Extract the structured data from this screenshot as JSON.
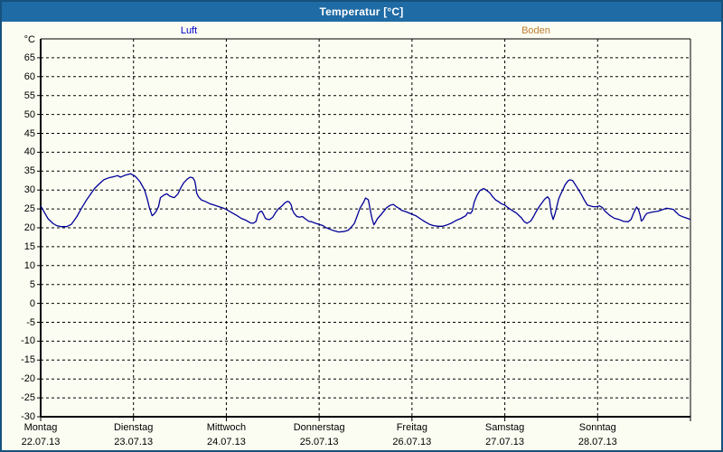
{
  "window": {
    "title": "Temperatur [°C]",
    "titlebar_color": "#1F6BA5",
    "border_color": "#16527C",
    "background_color": "#FCFDF2"
  },
  "legend": {
    "items": [
      {
        "label": "Luft",
        "color": "#0000CC"
      },
      {
        "label": "Boden",
        "color": "#BE7D32"
      }
    ],
    "position": "top"
  },
  "chart_data": {
    "type": "line",
    "title": "Temperatur [°C]",
    "y_unit_label": "°C",
    "ylim": [
      -30,
      70
    ],
    "y_ticks": [
      65,
      60,
      55,
      50,
      45,
      40,
      35,
      30,
      25,
      20,
      15,
      10,
      5,
      0,
      -5,
      -10,
      -15,
      -20,
      -25,
      -30
    ],
    "xlim_days": [
      0,
      7
    ],
    "grid": "dashed-black",
    "x_days": [
      {
        "weekday": "Montag",
        "date": "22.07.13"
      },
      {
        "weekday": "Dienstag",
        "date": "23.07.13"
      },
      {
        "weekday": "Mittwoch",
        "date": "24.07.13"
      },
      {
        "weekday": "Donnerstag",
        "date": "25.07.13"
      },
      {
        "weekday": "Freitag",
        "date": "26.07.13"
      },
      {
        "weekday": "Samstag",
        "date": "27.07.13"
      },
      {
        "weekday": "Sonntag",
        "date": "28.07.13"
      }
    ],
    "series": [
      {
        "name": "Luft",
        "color": "#000099",
        "points": [
          [
            0.0,
            25.8
          ],
          [
            0.03,
            24.5
          ],
          [
            0.08,
            22.4
          ],
          [
            0.13,
            21.2
          ],
          [
            0.17,
            20.6
          ],
          [
            0.22,
            20.3
          ],
          [
            0.28,
            20.3
          ],
          [
            0.33,
            20.9
          ],
          [
            0.39,
            23.0
          ],
          [
            0.44,
            25.2
          ],
          [
            0.49,
            27.2
          ],
          [
            0.54,
            29.0
          ],
          [
            0.58,
            30.4
          ],
          [
            0.63,
            31.6
          ],
          [
            0.68,
            32.7
          ],
          [
            0.73,
            33.2
          ],
          [
            0.78,
            33.5
          ],
          [
            0.83,
            33.8
          ],
          [
            0.86,
            33.4
          ],
          [
            0.89,
            33.7
          ],
          [
            0.92,
            34.0
          ],
          [
            0.97,
            34.3
          ],
          [
            1.02,
            33.6
          ],
          [
            1.07,
            32.2
          ],
          [
            1.12,
            30.0
          ],
          [
            1.15,
            27.5
          ],
          [
            1.17,
            25.4
          ],
          [
            1.2,
            23.2
          ],
          [
            1.22,
            23.6
          ],
          [
            1.24,
            24.2
          ],
          [
            1.27,
            25.6
          ],
          [
            1.29,
            28.0
          ],
          [
            1.33,
            28.7
          ],
          [
            1.36,
            29.0
          ],
          [
            1.39,
            28.4
          ],
          [
            1.42,
            28.1
          ],
          [
            1.44,
            28.0
          ],
          [
            1.48,
            29.0
          ],
          [
            1.51,
            30.6
          ],
          [
            1.54,
            31.9
          ],
          [
            1.58,
            32.9
          ],
          [
            1.61,
            33.4
          ],
          [
            1.64,
            33.2
          ],
          [
            1.66,
            32.4
          ],
          [
            1.67,
            31.2
          ],
          [
            1.68,
            29.2
          ],
          [
            1.7,
            28.2
          ],
          [
            1.73,
            27.4
          ],
          [
            1.77,
            27.0
          ],
          [
            1.82,
            26.4
          ],
          [
            1.87,
            26.0
          ],
          [
            1.92,
            25.6
          ],
          [
            1.97,
            25.2
          ],
          [
            2.02,
            24.6
          ],
          [
            2.06,
            24.0
          ],
          [
            2.11,
            23.3
          ],
          [
            2.16,
            22.5
          ],
          [
            2.21,
            22.0
          ],
          [
            2.26,
            21.3
          ],
          [
            2.29,
            21.2
          ],
          [
            2.32,
            21.7
          ],
          [
            2.34,
            23.6
          ],
          [
            2.36,
            24.2
          ],
          [
            2.38,
            24.4
          ],
          [
            2.4,
            23.6
          ],
          [
            2.42,
            22.5
          ],
          [
            2.45,
            22.2
          ],
          [
            2.47,
            22.2
          ],
          [
            2.5,
            22.8
          ],
          [
            2.53,
            24.0
          ],
          [
            2.56,
            25.0
          ],
          [
            2.6,
            25.8
          ],
          [
            2.63,
            26.6
          ],
          [
            2.66,
            27.0
          ],
          [
            2.68,
            26.8
          ],
          [
            2.7,
            26.0
          ],
          [
            2.71,
            24.8
          ],
          [
            2.73,
            23.8
          ],
          [
            2.76,
            23.0
          ],
          [
            2.79,
            22.8
          ],
          [
            2.82,
            23.0
          ],
          [
            2.85,
            22.4
          ],
          [
            2.89,
            21.7
          ],
          [
            2.92,
            21.6
          ],
          [
            2.95,
            21.3
          ],
          [
            3.0,
            20.9
          ],
          [
            3.04,
            20.6
          ],
          [
            3.07,
            20.1
          ],
          [
            3.12,
            19.6
          ],
          [
            3.16,
            19.2
          ],
          [
            3.21,
            18.9
          ],
          [
            3.26,
            19.0
          ],
          [
            3.31,
            19.3
          ],
          [
            3.34,
            20.0
          ],
          [
            3.38,
            21.2
          ],
          [
            3.41,
            23.2
          ],
          [
            3.44,
            25.2
          ],
          [
            3.48,
            26.8
          ],
          [
            3.5,
            27.9
          ],
          [
            3.53,
            27.4
          ],
          [
            3.55,
            24.8
          ],
          [
            3.57,
            22.4
          ],
          [
            3.59,
            20.8
          ],
          [
            3.6,
            21.2
          ],
          [
            3.63,
            22.5
          ],
          [
            3.67,
            23.6
          ],
          [
            3.7,
            24.5
          ],
          [
            3.73,
            25.4
          ],
          [
            3.77,
            26.0
          ],
          [
            3.8,
            26.2
          ],
          [
            3.83,
            25.6
          ],
          [
            3.87,
            25.0
          ],
          [
            3.89,
            24.6
          ],
          [
            3.94,
            24.2
          ],
          [
            4.0,
            23.6
          ],
          [
            4.04,
            23.2
          ],
          [
            4.09,
            22.4
          ],
          [
            4.14,
            21.6
          ],
          [
            4.19,
            20.9
          ],
          [
            4.23,
            20.6
          ],
          [
            4.28,
            20.4
          ],
          [
            4.33,
            20.4
          ],
          [
            4.38,
            20.8
          ],
          [
            4.43,
            21.3
          ],
          [
            4.48,
            22.0
          ],
          [
            4.53,
            22.5
          ],
          [
            4.58,
            23.2
          ],
          [
            4.6,
            24.0
          ],
          [
            4.63,
            23.8
          ],
          [
            4.65,
            24.5
          ],
          [
            4.67,
            26.8
          ],
          [
            4.7,
            28.6
          ],
          [
            4.73,
            29.8
          ],
          [
            4.77,
            30.4
          ],
          [
            4.8,
            30.0
          ],
          [
            4.84,
            29.2
          ],
          [
            4.87,
            28.2
          ],
          [
            4.9,
            27.4
          ],
          [
            4.94,
            26.8
          ],
          [
            4.96,
            26.4
          ],
          [
            5.0,
            26.0
          ],
          [
            5.03,
            25.4
          ],
          [
            5.08,
            24.6
          ],
          [
            5.13,
            23.8
          ],
          [
            5.18,
            22.6
          ],
          [
            5.21,
            21.6
          ],
          [
            5.24,
            21.2
          ],
          [
            5.28,
            21.8
          ],
          [
            5.31,
            23.0
          ],
          [
            5.34,
            24.4
          ],
          [
            5.37,
            25.6
          ],
          [
            5.4,
            26.6
          ],
          [
            5.43,
            27.6
          ],
          [
            5.46,
            28.2
          ],
          [
            5.48,
            27.6
          ],
          [
            5.5,
            24.0
          ],
          [
            5.52,
            22.2
          ],
          [
            5.54,
            23.6
          ],
          [
            5.56,
            25.6
          ],
          [
            5.58,
            27.6
          ],
          [
            5.6,
            28.8
          ],
          [
            5.62,
            29.8
          ],
          [
            5.65,
            31.4
          ],
          [
            5.68,
            32.4
          ],
          [
            5.7,
            32.7
          ],
          [
            5.73,
            32.5
          ],
          [
            5.75,
            31.8
          ],
          [
            5.78,
            30.6
          ],
          [
            5.81,
            29.4
          ],
          [
            5.83,
            28.6
          ],
          [
            5.86,
            27.2
          ],
          [
            5.89,
            26.0
          ],
          [
            5.92,
            25.8
          ],
          [
            5.95,
            25.6
          ],
          [
            5.99,
            25.6
          ],
          [
            6.02,
            25.8
          ],
          [
            6.05,
            25.4
          ],
          [
            6.08,
            24.4
          ],
          [
            6.13,
            23.3
          ],
          [
            6.18,
            22.5
          ],
          [
            6.23,
            22.2
          ],
          [
            6.28,
            21.7
          ],
          [
            6.33,
            21.6
          ],
          [
            6.36,
            22.2
          ],
          [
            6.39,
            24.0
          ],
          [
            6.42,
            25.5
          ],
          [
            6.44,
            24.8
          ],
          [
            6.46,
            23.2
          ],
          [
            6.47,
            21.8
          ],
          [
            6.49,
            22.2
          ],
          [
            6.51,
            23.2
          ],
          [
            6.53,
            23.8
          ],
          [
            6.56,
            24.0
          ],
          [
            6.6,
            24.2
          ],
          [
            6.65,
            24.4
          ],
          [
            6.7,
            24.8
          ],
          [
            6.74,
            25.2
          ],
          [
            6.79,
            25.0
          ],
          [
            6.82,
            24.8
          ],
          [
            6.84,
            24.2
          ],
          [
            6.88,
            23.3
          ],
          [
            6.93,
            22.8
          ],
          [
            6.98,
            22.4
          ],
          [
            7.0,
            22.2
          ]
        ]
      },
      {
        "name": "Boden",
        "color": "#BE7D32",
        "points": []
      }
    ]
  }
}
